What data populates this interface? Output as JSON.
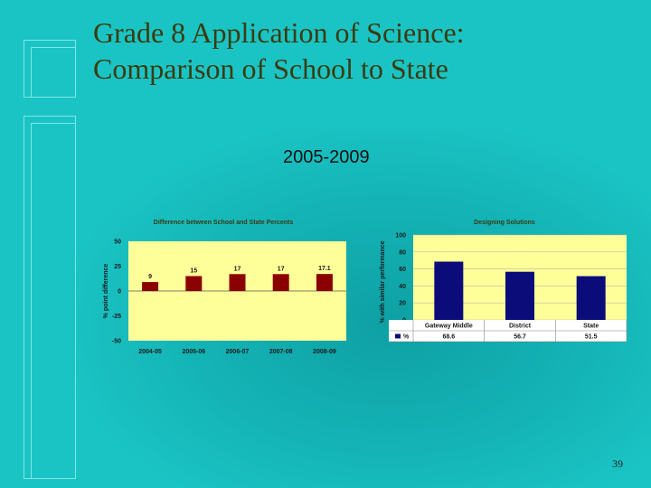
{
  "slide": {
    "title_line1": "Grade 8 Application of Science:",
    "title_line2": "Comparison of School to State",
    "subtitle": "2005-2009",
    "page_number": "39"
  },
  "chart_data": [
    {
      "type": "bar",
      "title": "Difference between School and State Percents",
      "ylabel": "% point difference",
      "xlabel": "",
      "categories": [
        "2004-05",
        "2005-06",
        "2006-07",
        "2007-08",
        "2008-09"
      ],
      "values": [
        9,
        15,
        17,
        17,
        17.1
      ],
      "data_labels": [
        "9",
        "15",
        "17",
        "17",
        "17.1"
      ],
      "ylim": [
        -50,
        50
      ],
      "yticks": [
        50,
        25,
        0,
        -25,
        -50
      ],
      "ytick_labels": [
        "50",
        "25",
        "0",
        "-25",
        "-50"
      ],
      "grid": false,
      "bar_color": "#8b0000",
      "plot_background": "#ffff99"
    },
    {
      "type": "bar",
      "title": "Designing Solutions",
      "ylabel": "% with similar performance",
      "xlabel": "",
      "categories": [
        "Gateway Middle",
        "District",
        "State"
      ],
      "series": [
        {
          "name": "%",
          "values": [
            68.6,
            56.7,
            51.5
          ]
        }
      ],
      "value_labels": [
        "68.6",
        "56.7",
        "51.5"
      ],
      "ylim": [
        0,
        100
      ],
      "yticks": [
        100,
        80,
        60,
        40,
        20,
        0
      ],
      "ytick_labels": [
        "100",
        "80",
        "60",
        "40",
        "20",
        "0"
      ],
      "grid": true,
      "legend": "data-table",
      "bar_color": "#0b0b7a",
      "plot_background": "#ffff99"
    }
  ]
}
